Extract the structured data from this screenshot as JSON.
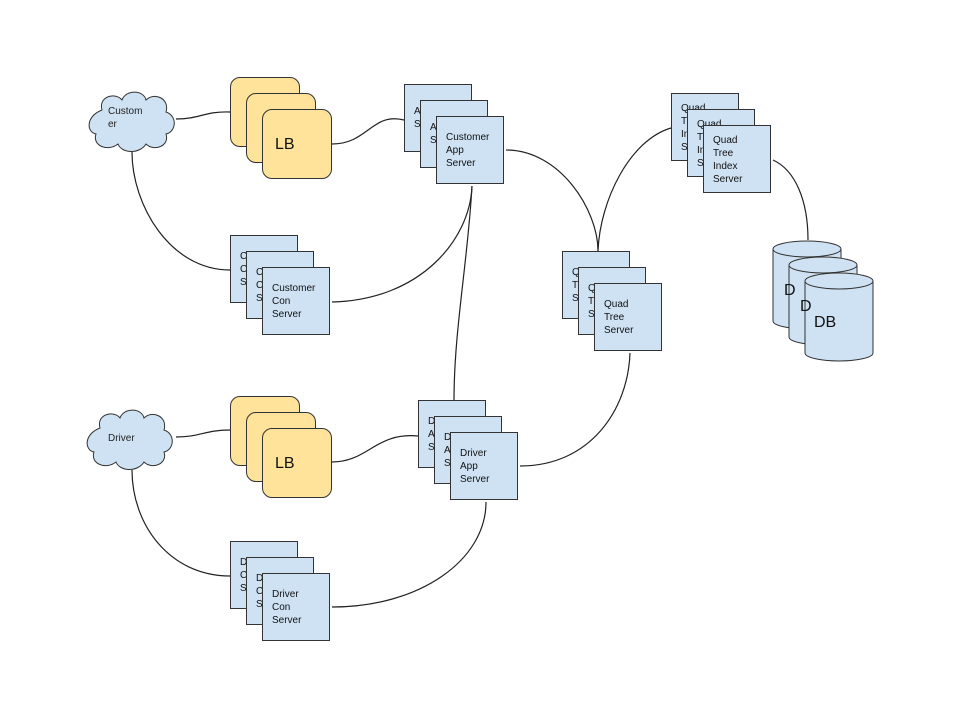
{
  "clouds": [
    {
      "id": "customer",
      "label_lines": [
        "Custom",
        "er"
      ]
    },
    {
      "id": "driver",
      "label_lines": [
        "Driver"
      ]
    }
  ],
  "load_balancers": [
    {
      "id": "customer-lb",
      "label": "LB"
    },
    {
      "id": "driver-lb",
      "label": "LB"
    }
  ],
  "server_stacks": [
    {
      "id": "customer-app",
      "layers": [
        [
          "A",
          "S"
        ],
        [
          "A",
          "S"
        ],
        [
          "Customer",
          "App",
          "Server"
        ]
      ]
    },
    {
      "id": "customer-con",
      "layers": [
        [
          "C",
          "C",
          "S"
        ],
        [
          "C",
          "C",
          "S"
        ],
        [
          "Customer",
          "Con",
          "Server"
        ]
      ]
    },
    {
      "id": "driver-app",
      "layers": [
        [
          "D",
          "A",
          "S"
        ],
        [
          "D",
          "A",
          "S"
        ],
        [
          "Driver",
          "App",
          "Server"
        ]
      ]
    },
    {
      "id": "driver-con",
      "layers": [
        [
          "D",
          "C",
          "S"
        ],
        [
          "D",
          "C",
          "S"
        ],
        [
          "Driver",
          "Con",
          "Server"
        ]
      ]
    },
    {
      "id": "quad-tree",
      "layers": [
        [
          "Q",
          "T",
          "S"
        ],
        [
          "Q",
          "T",
          "S"
        ],
        [
          "Quad",
          "Tree",
          "Server"
        ]
      ]
    },
    {
      "id": "quad-index",
      "layers": [
        [
          "Quad",
          "T",
          "In",
          "S"
        ],
        [
          "Quad",
          "T",
          "In",
          "S"
        ],
        [
          "Quad",
          "Tree",
          "Index",
          "Server"
        ]
      ]
    }
  ],
  "database": {
    "id": "db",
    "layer_labels": [
      "D",
      "D",
      "DB"
    ]
  },
  "connections": [
    [
      "customer",
      "customer-lb"
    ],
    [
      "customer-lb",
      "customer-app"
    ],
    [
      "customer",
      "customer-con"
    ],
    [
      "customer-con",
      "customer-app"
    ],
    [
      "customer-app",
      "quad-tree"
    ],
    [
      "customer-app",
      "driver-app"
    ],
    [
      "quad-tree",
      "quad-index"
    ],
    [
      "quad-index",
      "db"
    ],
    [
      "driver",
      "driver-lb"
    ],
    [
      "driver-lb",
      "driver-app"
    ],
    [
      "driver",
      "driver-con"
    ],
    [
      "driver-con",
      "driver-app"
    ],
    [
      "driver-app",
      "quad-tree"
    ]
  ],
  "colors": {
    "cloud_fill": "#cfe2f3",
    "lb_fill": "#ffe39b",
    "server_fill": "#cfe2f3",
    "db_fill": "#cfe2f3",
    "stroke": "#333333"
  }
}
